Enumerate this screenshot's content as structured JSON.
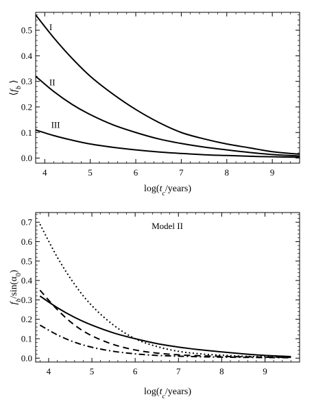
{
  "chart_data": [
    {
      "type": "line",
      "xlabel": "log(t_c/years)",
      "ylabel": "⟨f_b⟩",
      "xlim": [
        3.8,
        9.6
      ],
      "ylim": [
        -0.02,
        0.57
      ],
      "xticks": [
        4,
        5,
        6,
        7,
        8,
        9
      ],
      "yticks": [
        0.0,
        0.1,
        0.2,
        0.3,
        0.4,
        0.5
      ],
      "ytick_labels": [
        "0.0",
        "0.1",
        "0.2",
        "0.3",
        "0.4",
        "0.5"
      ],
      "series": [
        {
          "name": "I",
          "style": "solid",
          "x": [
            3.8,
            4.2,
            4.6,
            5.0,
            5.5,
            6.0,
            6.5,
            7.0,
            7.5,
            8.0,
            8.5,
            9.0,
            9.6
          ],
          "y": [
            0.56,
            0.47,
            0.39,
            0.32,
            0.25,
            0.19,
            0.14,
            0.1,
            0.075,
            0.055,
            0.04,
            0.025,
            0.015
          ]
        },
        {
          "name": "II",
          "style": "solid",
          "x": [
            3.8,
            4.2,
            4.6,
            5.0,
            5.5,
            6.0,
            6.5,
            7.0,
            7.5,
            8.0,
            8.5,
            9.0,
            9.6
          ],
          "y": [
            0.32,
            0.26,
            0.21,
            0.17,
            0.13,
            0.1,
            0.075,
            0.057,
            0.043,
            0.032,
            0.022,
            0.014,
            0.008
          ]
        },
        {
          "name": "III",
          "style": "solid",
          "x": [
            3.8,
            4.2,
            4.6,
            5.0,
            5.5,
            6.0,
            6.5,
            7.0,
            7.5,
            8.0,
            8.5,
            9.0,
            9.6
          ],
          "y": [
            0.11,
            0.088,
            0.07,
            0.055,
            0.042,
            0.032,
            0.024,
            0.018,
            0.013,
            0.01,
            0.007,
            0.005,
            0.003
          ]
        }
      ],
      "annotations": [
        "I",
        "II",
        "III"
      ]
    },
    {
      "type": "line",
      "title": "Model II",
      "xlabel": "log(t_c/years)",
      "ylabel": "f_b/sin(α_0)",
      "xlim": [
        3.7,
        9.8
      ],
      "ylim": [
        -0.02,
        0.75
      ],
      "xticks": [
        4,
        5,
        6,
        7,
        8,
        9
      ],
      "yticks": [
        0.0,
        0.1,
        0.2,
        0.3,
        0.4,
        0.5,
        0.6,
        0.7
      ],
      "ytick_labels": [
        "0.0",
        "0.1",
        "0.2",
        "0.3",
        "0.4",
        "0.5",
        "0.6",
        "0.7"
      ],
      "series": [
        {
          "style": "dotted",
          "x": [
            3.8,
            4.2,
            4.6,
            5.0,
            5.5,
            6.0,
            6.5,
            7.0,
            7.5,
            8.0,
            8.5,
            9.0,
            9.6
          ],
          "y": [
            0.69,
            0.52,
            0.38,
            0.27,
            0.17,
            0.1,
            0.06,
            0.035,
            0.022,
            0.015,
            0.01,
            0.007,
            0.005
          ]
        },
        {
          "style": "solid",
          "x": [
            3.8,
            4.2,
            4.6,
            5.0,
            5.5,
            6.0,
            6.5,
            7.0,
            7.5,
            8.0,
            8.5,
            9.0,
            9.6
          ],
          "y": [
            0.32,
            0.26,
            0.21,
            0.17,
            0.13,
            0.1,
            0.075,
            0.057,
            0.043,
            0.032,
            0.022,
            0.014,
            0.008
          ]
        },
        {
          "style": "dashed",
          "x": [
            3.8,
            4.2,
            4.6,
            5.0,
            5.5,
            6.0,
            6.5,
            7.0,
            7.5,
            8.0,
            8.5,
            9.0,
            9.6
          ],
          "y": [
            0.35,
            0.25,
            0.17,
            0.115,
            0.07,
            0.042,
            0.026,
            0.017,
            0.012,
            0.009,
            0.007,
            0.005,
            0.004
          ]
        },
        {
          "style": "dashdot",
          "x": [
            3.8,
            4.2,
            4.6,
            5.0,
            5.5,
            6.0,
            6.5,
            7.0,
            7.5,
            8.0,
            8.5,
            9.0,
            9.6
          ],
          "y": [
            0.17,
            0.12,
            0.082,
            0.056,
            0.035,
            0.022,
            0.014,
            0.01,
            0.007,
            0.005,
            0.004,
            0.003,
            0.002
          ]
        }
      ]
    }
  ]
}
